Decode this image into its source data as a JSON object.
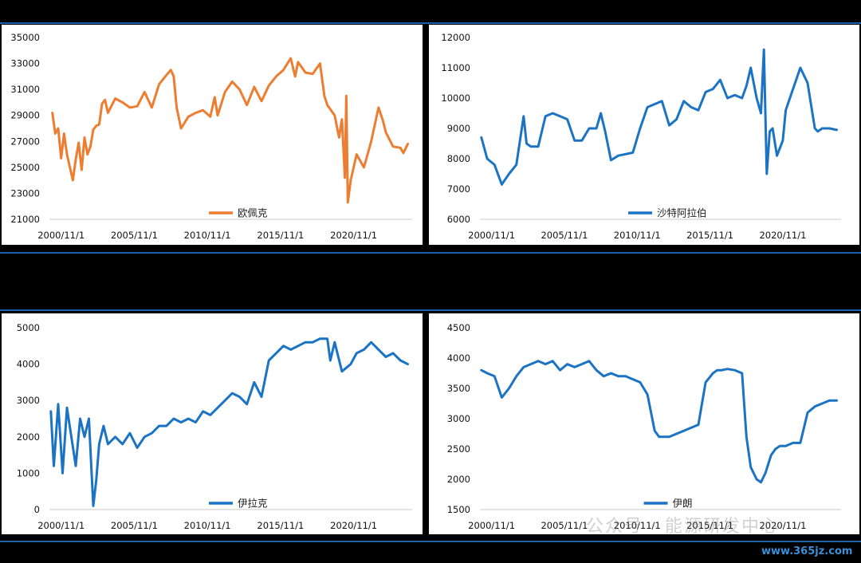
{
  "colors": {
    "orange": "#ed7d31",
    "blue": "#1a73c4",
    "background": "#000000",
    "rule": "#1f5fa8"
  },
  "watermark": {
    "text": "公众号 · 能源研发中心",
    "site": "www.365jz.com"
  },
  "chart_data": [
    {
      "type": "line",
      "legend": "欧佩克",
      "legend_placement": "bottom-center",
      "color": "#ed7d31",
      "ylim": [
        21000,
        35000
      ],
      "yticks": [
        21000,
        23000,
        25000,
        27000,
        29000,
        31000,
        33000,
        35000
      ],
      "xticks": [
        "2000/11/1",
        "2005/11/1",
        "2010/11/1",
        "2015/11/1",
        "2020/11/1"
      ],
      "xlim": [
        2000.0,
        2024.8
      ],
      "grid": false,
      "x": [
        2000.2,
        2000.4,
        2000.6,
        2000.8,
        2001.0,
        2001.2,
        2001.4,
        2001.6,
        2001.8,
        2002.0,
        2002.2,
        2002.4,
        2002.6,
        2002.8,
        2003.0,
        2003.2,
        2003.4,
        2003.6,
        2003.8,
        2004.0,
        2004.5,
        2005.0,
        2005.5,
        2006.0,
        2006.5,
        2007.0,
        2007.5,
        2008.0,
        2008.3,
        2008.5,
        2008.7,
        2009.0,
        2009.5,
        2010.0,
        2010.5,
        2011.0,
        2011.3,
        2011.5,
        2012.0,
        2012.5,
        2013.0,
        2013.5,
        2014.0,
        2014.5,
        2015.0,
        2015.5,
        2016.0,
        2016.5,
        2016.8,
        2017.0,
        2017.5,
        2018.0,
        2018.5,
        2018.8,
        2019.0,
        2019.5,
        2019.8,
        2020.0,
        2020.2,
        2020.3,
        2020.4,
        2020.6,
        2021.0,
        2021.5,
        2022.0,
        2022.5,
        2022.8,
        2023.0,
        2023.5,
        2024.0,
        2024.2,
        2024.5
      ],
      "values": [
        29200,
        27600,
        28000,
        25700,
        27600,
        26000,
        25000,
        24000,
        25600,
        26900,
        24800,
        27300,
        26000,
        26600,
        27900,
        28200,
        28300,
        29900,
        30200,
        29200,
        30300,
        30000,
        29600,
        29700,
        30800,
        29600,
        31400,
        32100,
        32500,
        32000,
        29600,
        28000,
        28900,
        29200,
        29400,
        28900,
        30400,
        29000,
        30800,
        31600,
        31000,
        29800,
        31200,
        30100,
        31300,
        32000,
        32500,
        33400,
        32000,
        33100,
        32300,
        32200,
        33000,
        30500,
        29800,
        29000,
        27300,
        28700,
        24200,
        30500,
        22300,
        24000,
        26000,
        25000,
        27000,
        29600,
        28600,
        27700,
        26600,
        26500,
        26100,
        26800
      ]
    },
    {
      "type": "line",
      "legend": "沙特阿拉伯",
      "legend_placement": "bottom-center",
      "color": "#1a73c4",
      "ylim": [
        6000,
        12000
      ],
      "yticks": [
        6000,
        7000,
        8000,
        9000,
        10000,
        11000,
        12000
      ],
      "xticks": [
        "2000/11/1",
        "2005/11/1",
        "2010/11/1",
        "2015/11/1",
        "2020/11/1"
      ],
      "xlim": [
        2000.0,
        2024.8
      ],
      "grid": false,
      "x": [
        2000.1,
        2000.5,
        2001.0,
        2001.5,
        2002.0,
        2002.5,
        2003.0,
        2003.2,
        2003.5,
        2004.0,
        2004.5,
        2005.0,
        2005.5,
        2006.0,
        2006.5,
        2007.0,
        2007.5,
        2008.0,
        2008.3,
        2008.6,
        2009.0,
        2009.5,
        2010.0,
        2010.5,
        2011.0,
        2011.5,
        2012.0,
        2012.5,
        2013.0,
        2013.5,
        2014.0,
        2014.5,
        2015.0,
        2015.5,
        2016.0,
        2016.5,
        2017.0,
        2017.5,
        2018.0,
        2018.3,
        2018.6,
        2019.0,
        2019.3,
        2019.5,
        2019.7,
        2019.9,
        2020.1,
        2020.4,
        2020.8,
        2021.0,
        2021.5,
        2022.0,
        2022.5,
        2023.0,
        2023.2,
        2023.5,
        2024.0,
        2024.5
      ],
      "values": [
        8700,
        8000,
        7800,
        7150,
        7500,
        7800,
        9400,
        8500,
        8400,
        8400,
        9400,
        9500,
        9400,
        9300,
        8600,
        8600,
        9000,
        9000,
        9500,
        8900,
        7950,
        8100,
        8150,
        8200,
        9000,
        9700,
        9800,
        9900,
        9100,
        9300,
        9900,
        9700,
        9600,
        10200,
        10300,
        10600,
        10000,
        10100,
        10000,
        10400,
        11000,
        10000,
        9500,
        11600,
        7500,
        8900,
        9000,
        8100,
        8600,
        9600,
        10300,
        11000,
        10500,
        9000,
        8900,
        9000,
        9000,
        8950
      ]
    },
    {
      "type": "line",
      "legend": "伊拉克",
      "legend_placement": "bottom-center",
      "color": "#1a73c4",
      "ylim": [
        0,
        5000
      ],
      "yticks": [
        0,
        1000,
        2000,
        3000,
        4000,
        5000
      ],
      "xticks": [
        "2000/11/1",
        "2005/11/1",
        "2010/11/1",
        "2015/11/1",
        "2020/11/1"
      ],
      "xlim": [
        2000.0,
        2024.8
      ],
      "grid": false,
      "x": [
        2000.1,
        2000.3,
        2000.6,
        2000.9,
        2001.2,
        2001.5,
        2001.8,
        2002.1,
        2002.4,
        2002.7,
        2003.0,
        2003.2,
        2003.4,
        2003.7,
        2004.0,
        2004.5,
        2005.0,
        2005.5,
        2006.0,
        2006.5,
        2007.0,
        2007.5,
        2008.0,
        2008.5,
        2009.0,
        2009.5,
        2010.0,
        2010.5,
        2011.0,
        2011.5,
        2012.0,
        2012.5,
        2013.0,
        2013.5,
        2014.0,
        2014.5,
        2015.0,
        2015.5,
        2016.0,
        2016.5,
        2017.0,
        2017.5,
        2018.0,
        2018.5,
        2019.0,
        2019.2,
        2019.5,
        2020.0,
        2020.3,
        2020.6,
        2021.0,
        2021.5,
        2022.0,
        2022.5,
        2023.0,
        2023.5,
        2024.0,
        2024.5
      ],
      "values": [
        2700,
        1200,
        2900,
        1000,
        2800,
        2000,
        1200,
        2500,
        2000,
        2500,
        100,
        800,
        1800,
        2300,
        1800,
        2000,
        1800,
        2100,
        1700,
        2000,
        2100,
        2300,
        2300,
        2500,
        2400,
        2500,
        2400,
        2700,
        2600,
        2800,
        3000,
        3200,
        3100,
        2900,
        3500,
        3100,
        4100,
        4300,
        4500,
        4400,
        4500,
        4600,
        4600,
        4700,
        4700,
        4100,
        4600,
        3800,
        3900,
        4000,
        4300,
        4400,
        4600,
        4400,
        4200,
        4300,
        4100,
        4000
      ]
    },
    {
      "type": "line",
      "legend": "伊朗",
      "legend_placement": "bottom-center",
      "color": "#1a73c4",
      "ylim": [
        1500,
        4500
      ],
      "yticks": [
        1500,
        2000,
        2500,
        3000,
        3500,
        4000,
        4500
      ],
      "xticks": [
        "2000/11/1",
        "2005/11/1",
        "2010/11/1",
        "2015/11/1",
        "2020/11/1"
      ],
      "xlim": [
        2000.0,
        2024.8
      ],
      "grid": false,
      "x": [
        2000.1,
        2000.5,
        2001.0,
        2001.5,
        2002.0,
        2002.5,
        2003.0,
        2003.5,
        2004.0,
        2004.5,
        2005.0,
        2005.5,
        2006.0,
        2006.5,
        2007.0,
        2007.5,
        2008.0,
        2008.5,
        2009.0,
        2009.5,
        2010.0,
        2010.5,
        2011.0,
        2011.5,
        2012.0,
        2012.3,
        2012.6,
        2013.0,
        2013.5,
        2014.0,
        2014.5,
        2015.0,
        2015.5,
        2016.0,
        2016.3,
        2016.6,
        2017.0,
        2017.5,
        2018.0,
        2018.3,
        2018.6,
        2019.0,
        2019.3,
        2019.6,
        2020.0,
        2020.3,
        2020.6,
        2021.0,
        2021.5,
        2022.0,
        2022.5,
        2023.0,
        2023.5,
        2024.0,
        2024.5
      ],
      "values": [
        3800,
        3750,
        3700,
        3350,
        3500,
        3700,
        3850,
        3900,
        3950,
        3900,
        3950,
        3800,
        3900,
        3850,
        3900,
        3950,
        3800,
        3700,
        3750,
        3700,
        3700,
        3650,
        3600,
        3400,
        2800,
        2700,
        2700,
        2700,
        2750,
        2800,
        2850,
        2900,
        3600,
        3750,
        3800,
        3800,
        3820,
        3800,
        3750,
        2700,
        2200,
        2000,
        1950,
        2100,
        2400,
        2500,
        2550,
        2550,
        2600,
        2600,
        3100,
        3200,
        3250,
        3300,
        3300
      ]
    }
  ]
}
